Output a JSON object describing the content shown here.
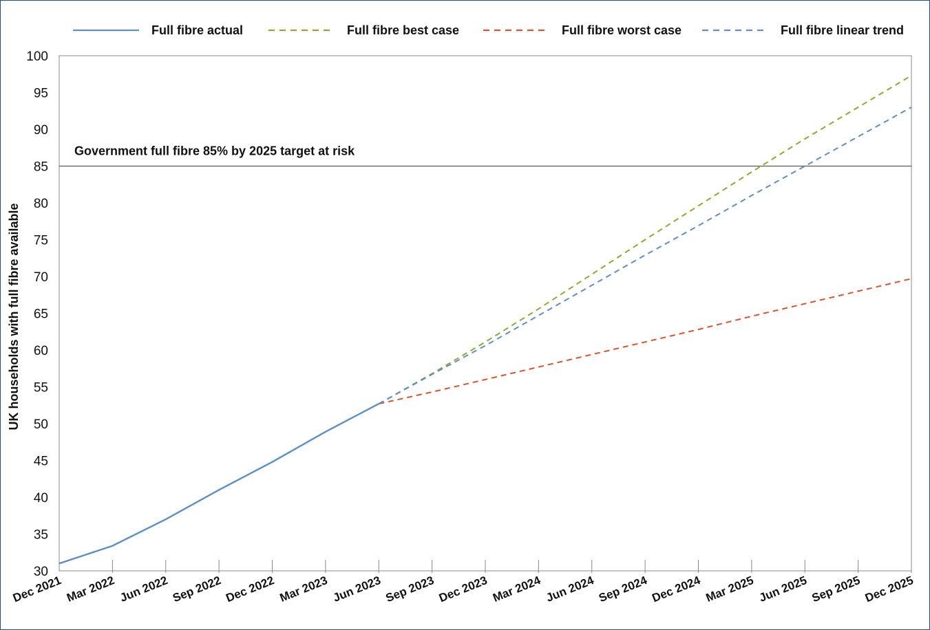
{
  "chart_data": {
    "type": "line",
    "title": "",
    "xlabel": "",
    "ylabel": "UK households with full fibre available",
    "categories": [
      "Dec 2021",
      "Mar 2022",
      "Jun 2022",
      "Sep 2022",
      "Dec 2022",
      "Mar 2023",
      "Jun 2023",
      "Sep 2023",
      "Dec 2023",
      "Mar 2024",
      "Jun 2024",
      "Sep 2024",
      "Dec 2024",
      "Mar 2025",
      "Jun 2025",
      "Sep 2025",
      "Dec 2025"
    ],
    "ylim": [
      30,
      100
    ],
    "yticks": [
      30,
      35,
      40,
      45,
      50,
      55,
      60,
      65,
      70,
      75,
      80,
      85,
      90,
      95,
      100
    ],
    "grid": false,
    "legend_position": "top",
    "series": [
      {
        "name": "Full fibre actual",
        "color": "#5b8fc9",
        "dash": "solid",
        "values": [
          31.0,
          33.4,
          37.0,
          41.0,
          44.8,
          48.9,
          52.7,
          null,
          null,
          null,
          null,
          null,
          null,
          null,
          null,
          null,
          null
        ]
      },
      {
        "name": "Full fibre best case",
        "color": "#8aab2e",
        "dash": "dashed",
        "values": [
          null,
          null,
          null,
          null,
          null,
          null,
          52.7,
          56.8,
          61.1,
          65.6,
          70.3,
          75.0,
          79.6,
          84.2,
          88.7,
          93.0,
          97.3
        ]
      },
      {
        "name": "Full fibre worst case",
        "color": "#d9532b",
        "dash": "dashed",
        "values": [
          null,
          null,
          null,
          null,
          null,
          null,
          52.7,
          54.3,
          56.0,
          57.7,
          59.4,
          61.1,
          62.8,
          64.6,
          66.3,
          68.0,
          69.7
        ]
      },
      {
        "name": "Full fibre linear trend",
        "color": "#5b8fc9",
        "dash": "dashed",
        "values": [
          null,
          null,
          null,
          null,
          null,
          null,
          52.7,
          56.7,
          60.6,
          64.7,
          68.8,
          72.9,
          76.9,
          81.0,
          85.0,
          89.0,
          93.0
        ]
      }
    ],
    "reference_line": {
      "value": 85,
      "label": "Government full fibre 85% by 2025 target at risk",
      "color": "#555555"
    }
  }
}
